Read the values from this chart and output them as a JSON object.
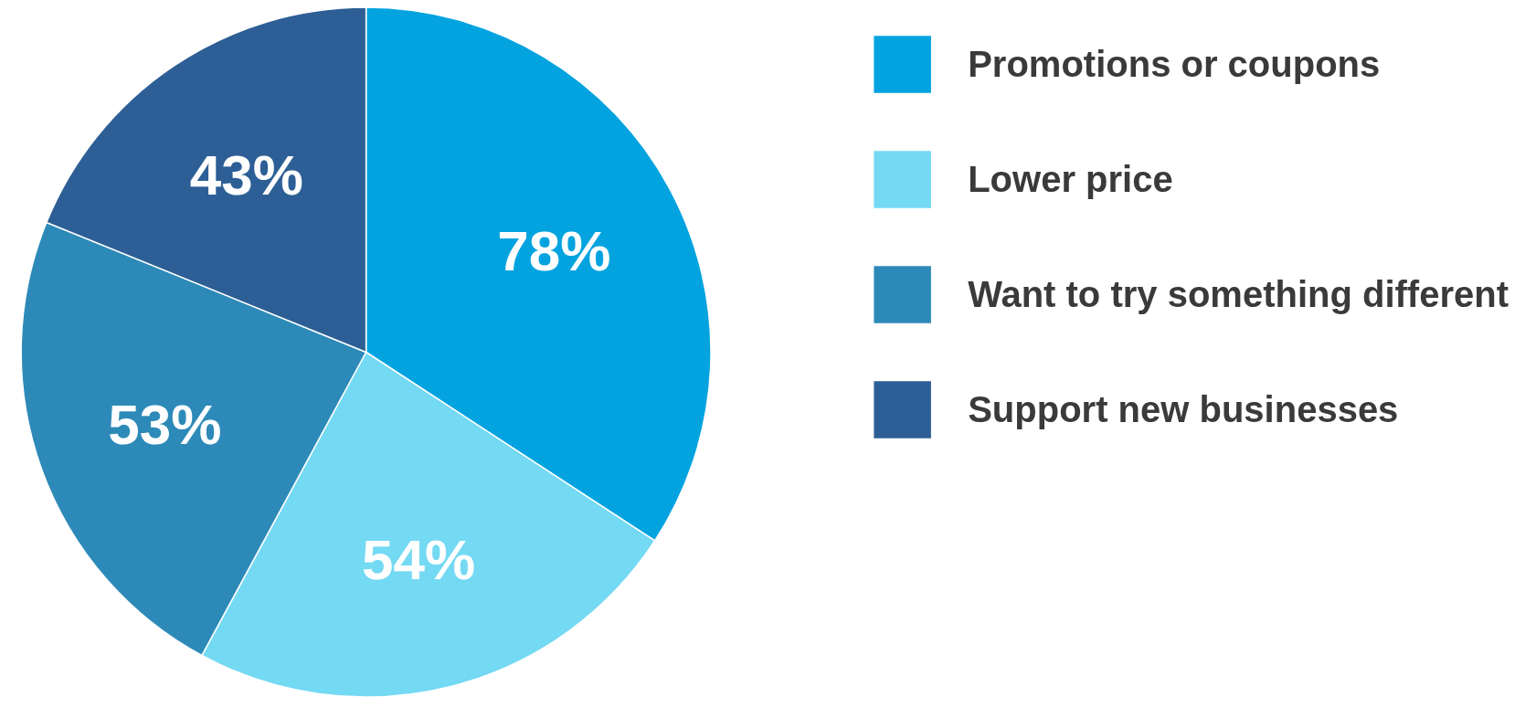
{
  "chart_data": {
    "type": "pie",
    "categories": [
      "Promotions or coupons",
      "Lower price",
      "Want to try something different",
      "Support new businesses"
    ],
    "values": [
      78,
      54,
      53,
      43
    ],
    "colors": [
      "#03a3e0",
      "#74d9f3",
      "#2d8ab8",
      "#2d5f96"
    ],
    "value_labels": [
      "78%",
      "54%",
      "53%",
      "43%"
    ],
    "legend": "top right"
  }
}
